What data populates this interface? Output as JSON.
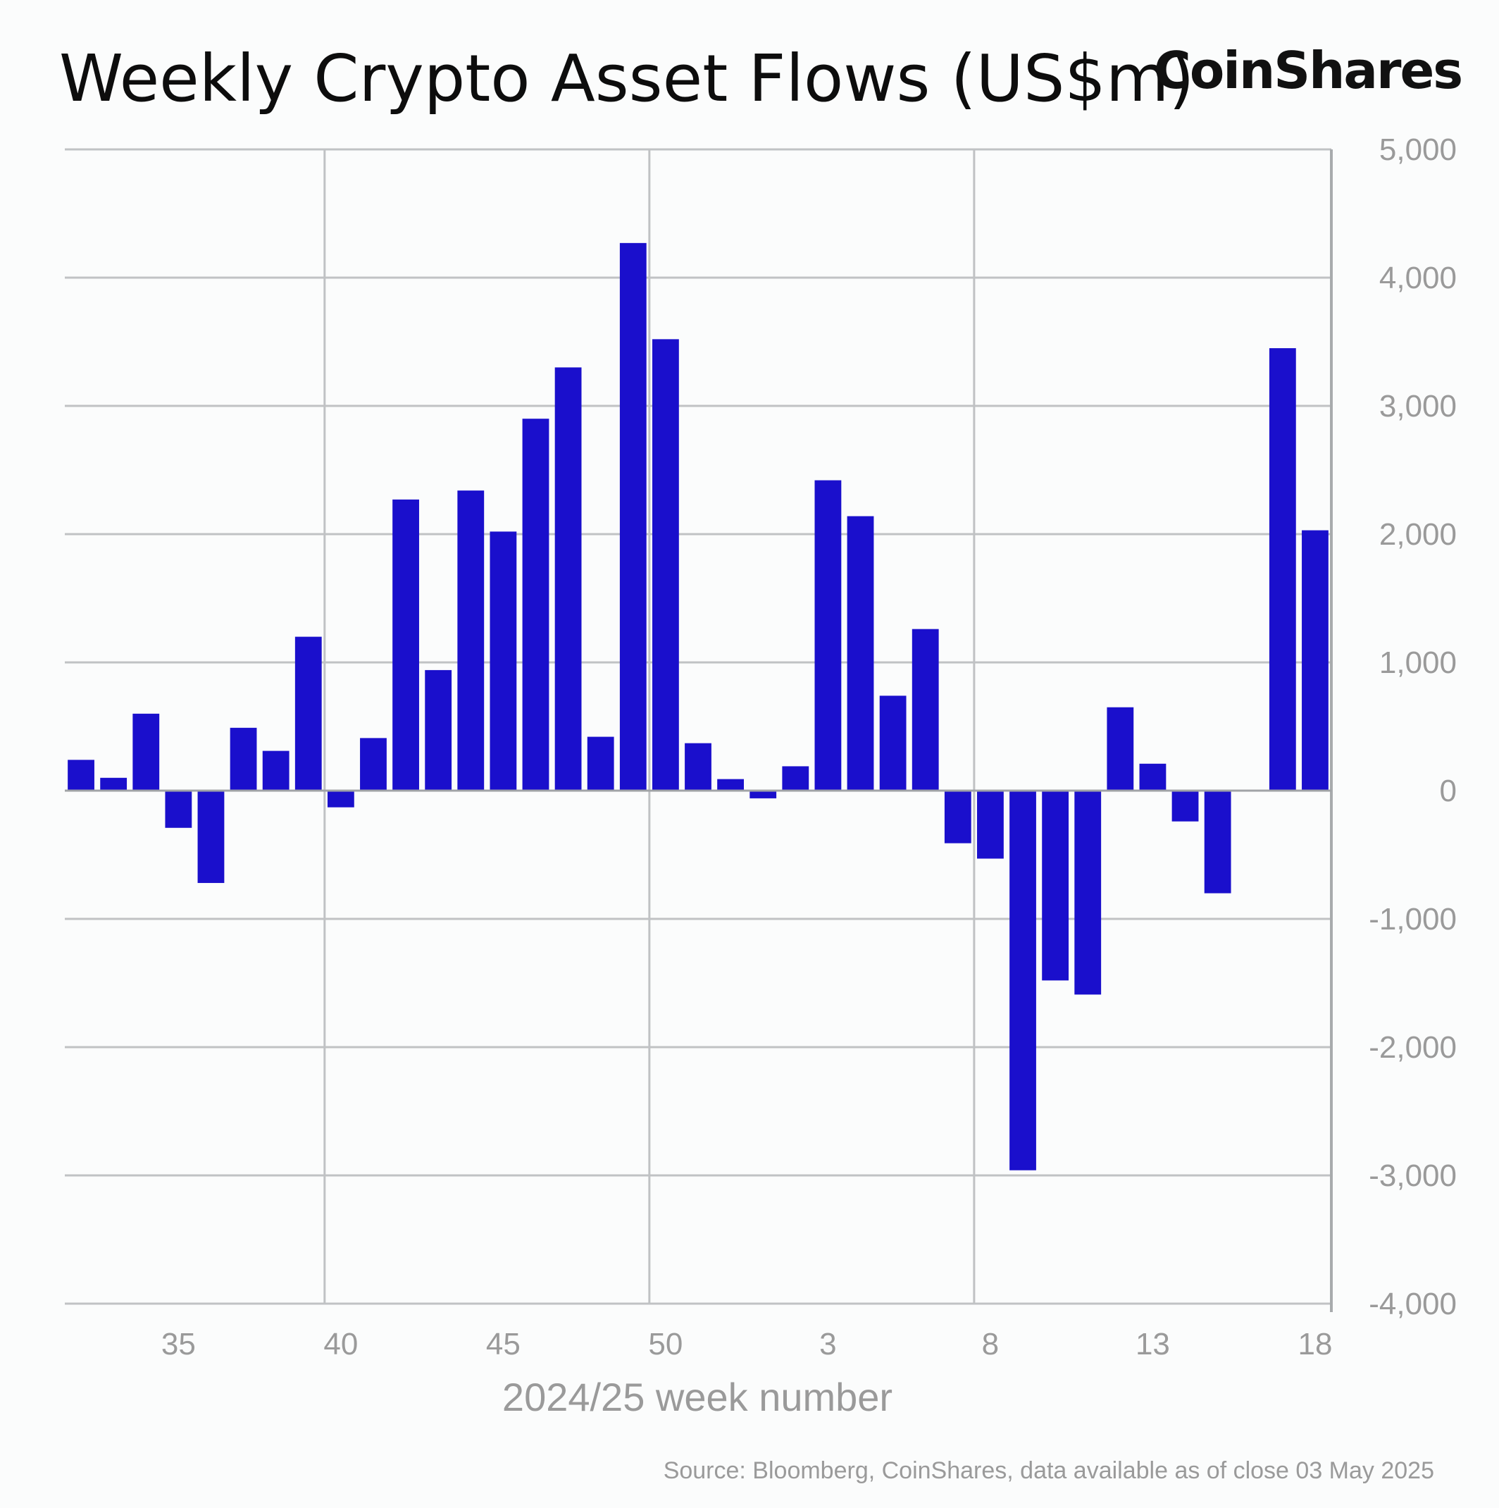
{
  "title": "Weekly Crypto Asset Flows (US$m)",
  "brand": "CoinShares",
  "source": "Source: Bloomberg, CoinShares, data available as of close 03 May 2025",
  "colors": {
    "bar": "#1a0fcc",
    "grid": "#c0c2c4",
    "axis": "#a8abad",
    "text": "#9a9a9a"
  },
  "chart_data": {
    "type": "bar",
    "xlabel": "2024/25 week number",
    "ylabel": "",
    "ylim": [
      -4000,
      5000
    ],
    "y_ticks": [
      5000,
      4000,
      3000,
      2000,
      1000,
      0,
      -1000,
      -2000,
      -3000,
      -4000
    ],
    "y_tick_labels": [
      "5,000",
      "4,000",
      "3,000",
      "2,000",
      "1,000",
      "0",
      "-1,000",
      "-2,000",
      "-3,000",
      "-4,000"
    ],
    "x_tick_labels": [
      {
        "label": "35",
        "week": "35"
      },
      {
        "label": "40",
        "week": "40"
      },
      {
        "label": "45",
        "week": "45"
      },
      {
        "label": "50",
        "week": "50"
      },
      {
        "label": "3",
        "week": "3"
      },
      {
        "label": "8",
        "week": "8"
      },
      {
        "label": "13",
        "week": "13"
      },
      {
        "label": "18",
        "week": "18"
      }
    ],
    "vertical_grid_weeks": [
      "40",
      "50",
      "8"
    ],
    "grid": true,
    "weeks": [
      "32",
      "33",
      "34",
      "35",
      "36",
      "37",
      "38",
      "39",
      "40",
      "41",
      "42",
      "43",
      "44",
      "45",
      "46",
      "47",
      "48",
      "49",
      "50",
      "51",
      "52",
      "1",
      "2",
      "3",
      "4",
      "5",
      "6",
      "7",
      "8",
      "9",
      "10",
      "11",
      "12",
      "13",
      "14",
      "15",
      "16",
      "17",
      "18"
    ],
    "values": [
      240,
      100,
      600,
      -290,
      -720,
      490,
      310,
      1200,
      -130,
      410,
      2270,
      940,
      2340,
      2020,
      2900,
      3300,
      420,
      4270,
      3520,
      370,
      90,
      -60,
      190,
      2420,
      2140,
      740,
      1260,
      -410,
      -530,
      -2960,
      -1480,
      -1590,
      650,
      210,
      -240,
      -800,
      0,
      3450,
      2030
    ]
  }
}
